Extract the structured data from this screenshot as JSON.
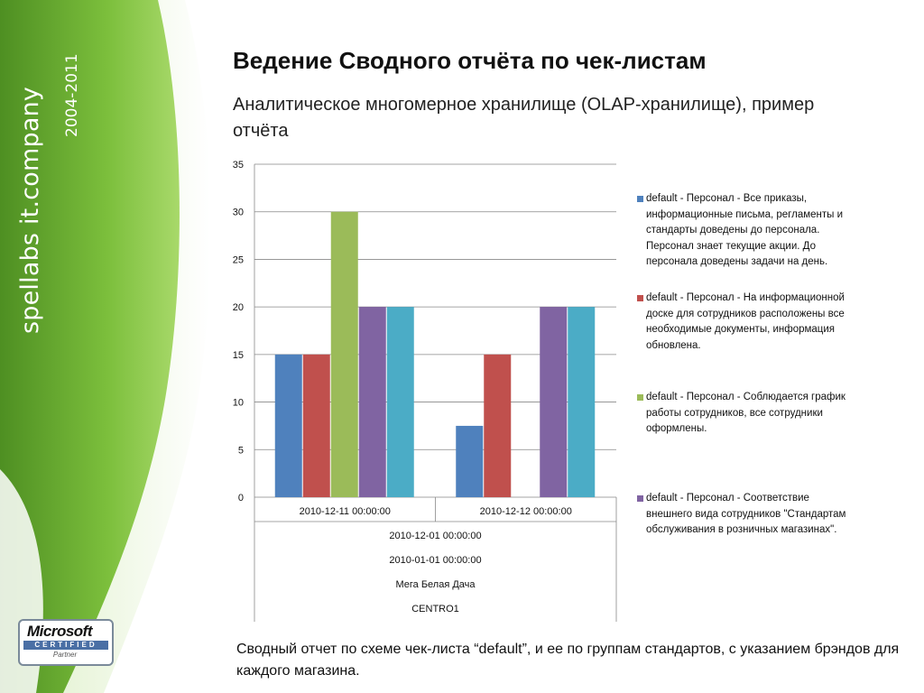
{
  "brand": {
    "name": "spellabs it.company",
    "years": "2004-2011",
    "colors": {
      "green_dark": "#5a9a2a",
      "green_light": "#9dd45a"
    }
  },
  "header": {
    "title": "Ведение Сводного отчёта по чек-листам",
    "subtitle": "Аналитическое многомерное хранилище (OLAP-хранилище), пример отчёта"
  },
  "chart_data": {
    "type": "bar",
    "ylim": [
      0,
      35
    ],
    "yticks": [
      "0",
      "5",
      "10",
      "15",
      "20",
      "25",
      "30",
      "35"
    ],
    "grid": true,
    "legend_position": "right",
    "categories": [
      "2010-12-11 00:00:00",
      "2010-12-12 00:00:00"
    ],
    "group_levels": [
      "2010-12-01 00:00:00",
      "2010-01-01 00:00:00",
      "Мега Белая Дача",
      "CENTRO1"
    ],
    "series": [
      {
        "name": "default - Персонал - Все приказы, информационные письма, регламенты и стандарты доведены до персонала. Персонал знает текущие акции. До персонала доведены задачи на день.",
        "color": "#4f81bd",
        "values": [
          15,
          7.5
        ]
      },
      {
        "name": "default - Персонал - На информационной доске для сотрудников расположены все необходимые документы, информация обновлена.",
        "color": "#c0504d",
        "values": [
          15,
          15
        ]
      },
      {
        "name": "default - Персонал - Соблюдается график работы сотрудников, все сотрудники оформлены.",
        "color": "#9bbb59",
        "values": [
          30,
          0
        ]
      },
      {
        "name": "default - Персонал - Соответствие внешнего вида сотрудников \"Стандартам обслуживания в розничных магазинах\".",
        "color": "#8064a2",
        "values": [
          20,
          20
        ]
      },
      {
        "name": "",
        "color": "#4bacc6",
        "values": [
          20,
          20
        ]
      }
    ]
  },
  "footer": {
    "text": "Сводный отчет по схеме чек-листа “default”, и ее по группам стандартов, с указанием брэндов  для каждого магазина."
  },
  "logo": {
    "word": "Microsoft",
    "certified": "CERTIFIED",
    "partner": "Partner"
  }
}
